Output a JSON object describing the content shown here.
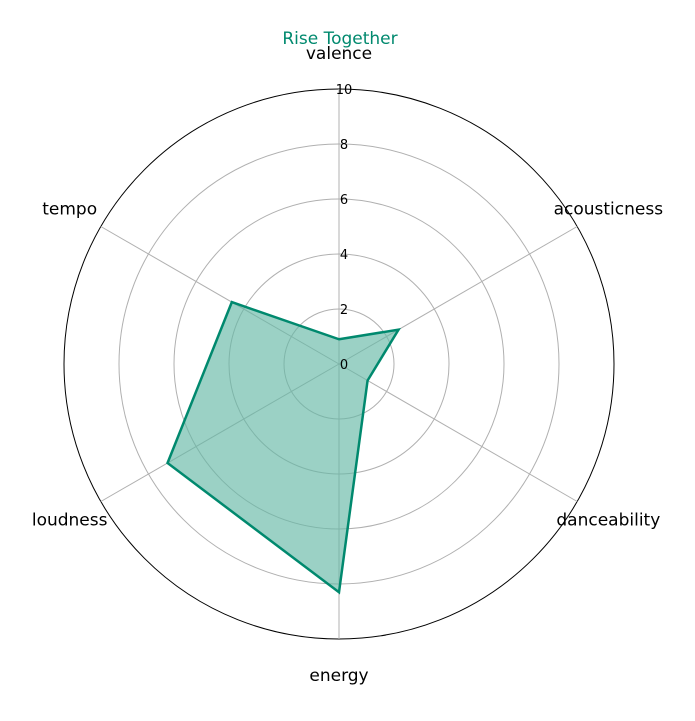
{
  "chart_data": {
    "type": "radar",
    "title": "Rise Together",
    "title_color": "#00896e",
    "axes": [
      "valence",
      "acousticness",
      "danceability",
      "energy",
      "loudness",
      "tempo"
    ],
    "series": [
      {
        "values": [
          0.9,
          2.5,
          1.2,
          8.3,
          7.2,
          4.5
        ],
        "line_color": "#00896e",
        "fill_color": "#66b8a6",
        "fill_opacity": 0.65
      }
    ],
    "rlim": [
      0,
      10
    ],
    "rticks": [
      "0",
      "2",
      "4",
      "6",
      "8",
      "10"
    ],
    "grid": true
  }
}
